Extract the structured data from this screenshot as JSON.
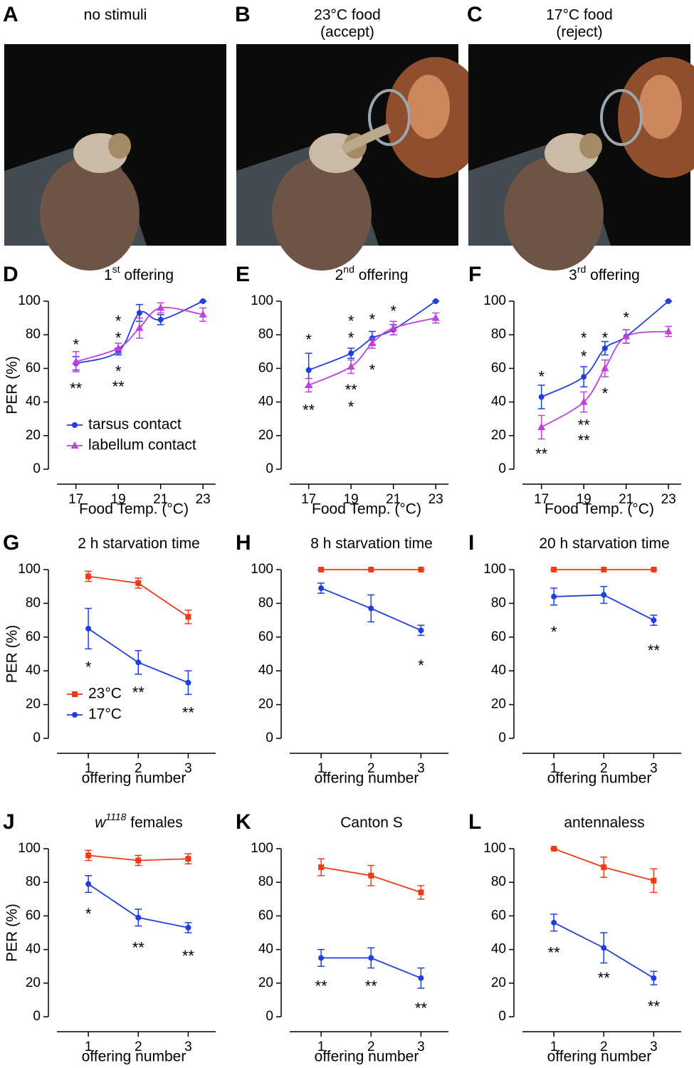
{
  "photos": [
    {
      "letter": "A",
      "title_lines": [
        "no stimuli"
      ]
    },
    {
      "letter": "B",
      "title_lines": [
        "23°C food",
        "(accept)"
      ]
    },
    {
      "letter": "C",
      "title_lines": [
        "17°C food",
        "(reject)"
      ]
    }
  ],
  "chart_data": [
    {
      "type": "line",
      "letter": "D",
      "title_parts": [
        {
          "text": "1"
        },
        {
          "text": "st",
          "sup": true
        },
        {
          "text": " offering"
        }
      ],
      "ylabel": "PER  (%)",
      "xlabel": "Food Temp. (°C)",
      "smooth": true,
      "legend": "lower left",
      "x": [
        17,
        19,
        20,
        21,
        23
      ],
      "xlim": [
        15.7,
        23.6
      ],
      "xticks": [
        17,
        19,
        21,
        23
      ],
      "ylim": [
        0,
        100
      ],
      "yticks": [
        0,
        20,
        40,
        60,
        80,
        100
      ],
      "series": [
        {
          "name": "tarsus contact",
          "color": "#1f3fe0",
          "marker": "circle",
          "values": [
            63,
            70,
            93,
            89,
            100
          ],
          "errors": [
            4,
            2,
            5,
            3,
            0
          ]
        },
        {
          "name": "labellum contact",
          "color": "#c040e0",
          "marker": "triangle",
          "values": [
            64,
            72,
            84,
            96,
            92
          ],
          "errors": [
            6,
            3,
            6,
            3,
            4
          ]
        }
      ],
      "annotations": [
        {
          "text": "*",
          "x": 17,
          "y": 76,
          "color": "#000000"
        },
        {
          "text": "**",
          "x": 17,
          "y": 50,
          "color": "#000000"
        },
        {
          "text": "*",
          "x": 19,
          "y": 90,
          "color": "#e02020"
        },
        {
          "text": "*",
          "x": 19,
          "y": 80,
          "color": "#000000"
        },
        {
          "text": "*",
          "x": 19,
          "y": 60,
          "color": "#000000"
        },
        {
          "text": "**",
          "x": 19,
          "y": 51,
          "color": "#e02020"
        }
      ]
    },
    {
      "type": "line",
      "letter": "E",
      "title_parts": [
        {
          "text": "2"
        },
        {
          "text": "nd",
          "sup": true
        },
        {
          "text": " offering"
        }
      ],
      "xlabel": "Food Temp. (°C)",
      "smooth": true,
      "x": [
        17,
        19,
        20,
        21,
        23
      ],
      "xlim": [
        15.7,
        23.6
      ],
      "xticks": [
        17,
        19,
        21,
        23
      ],
      "ylim": [
        0,
        100
      ],
      "yticks": [
        0,
        20,
        40,
        60,
        80,
        100
      ],
      "series": [
        {
          "name": "tarsus contact",
          "color": "#1f3fe0",
          "marker": "circle",
          "values": [
            59,
            69,
            78,
            83,
            100
          ],
          "errors": [
            10,
            3,
            4,
            3,
            0
          ]
        },
        {
          "name": "labellum contact",
          "color": "#c040e0",
          "marker": "triangle",
          "values": [
            50,
            61,
            75,
            84,
            90
          ],
          "errors": [
            4,
            4,
            3,
            4,
            3
          ]
        }
      ],
      "annotations": [
        {
          "text": "*",
          "x": 17,
          "y": 79,
          "color": "#000000"
        },
        {
          "text": "**",
          "x": 17,
          "y": 37,
          "color": "#000000"
        },
        {
          "text": "*",
          "x": 19,
          "y": 90,
          "color": "#e02020"
        },
        {
          "text": "*",
          "x": 19,
          "y": 80,
          "color": "#000000"
        },
        {
          "text": "**",
          "x": 19,
          "y": 49,
          "color": "#000000"
        },
        {
          "text": "*",
          "x": 19,
          "y": 39,
          "color": "#e02020"
        },
        {
          "text": "*",
          "x": 20,
          "y": 91,
          "color": "#000000"
        },
        {
          "text": "*",
          "x": 20,
          "y": 61,
          "color": "#000000"
        },
        {
          "text": "*",
          "x": 21,
          "y": 96,
          "color": "#000000"
        }
      ]
    },
    {
      "type": "line",
      "letter": "F",
      "title_parts": [
        {
          "text": "3"
        },
        {
          "text": "rd",
          "sup": true
        },
        {
          "text": " offering"
        }
      ],
      "xlabel": "Food Temp. (°C)",
      "smooth": true,
      "x": [
        17,
        19,
        20,
        21,
        23
      ],
      "xlim": [
        15.7,
        23.6
      ],
      "xticks": [
        17,
        19,
        21,
        23
      ],
      "ylim": [
        0,
        100
      ],
      "yticks": [
        0,
        20,
        40,
        60,
        80,
        100
      ],
      "series": [
        {
          "name": "tarsus contact",
          "color": "#1f3fe0",
          "marker": "circle",
          "values": [
            43,
            55,
            72,
            79,
            100
          ],
          "errors": [
            7,
            6,
            4,
            4,
            0
          ]
        },
        {
          "name": "labellum contact",
          "color": "#c040e0",
          "marker": "triangle",
          "values": [
            25,
            40,
            60,
            79,
            82
          ],
          "errors": [
            7,
            6,
            5,
            4,
            3
          ]
        }
      ],
      "annotations": [
        {
          "text": "*",
          "x": 17,
          "y": 57,
          "color": "#000000"
        },
        {
          "text": "**",
          "x": 17,
          "y": 11,
          "color": "#000000"
        },
        {
          "text": "*",
          "x": 19,
          "y": 80,
          "color": "#e02020"
        },
        {
          "text": "*",
          "x": 19,
          "y": 69,
          "color": "#000000"
        },
        {
          "text": "**",
          "x": 19,
          "y": 28,
          "color": "#000000"
        },
        {
          "text": "**",
          "x": 19,
          "y": 19,
          "color": "#e02020"
        },
        {
          "text": "*",
          "x": 20,
          "y": 80,
          "color": "#000000"
        },
        {
          "text": "*",
          "x": 20,
          "y": 47,
          "color": "#000000"
        },
        {
          "text": "*",
          "x": 21,
          "y": 92,
          "color": "#000000"
        }
      ]
    },
    {
      "type": "line",
      "letter": "G",
      "title_parts": [
        {
          "text": "2 h starvation time"
        }
      ],
      "ylabel": "PER  (%)",
      "xlabel": "offering number",
      "legend": "lower left",
      "x": [
        1,
        2,
        3
      ],
      "xlim": [
        0.2,
        3.55
      ],
      "xticks": [
        1,
        2,
        3
      ],
      "ylim": [
        0,
        100
      ],
      "yticks": [
        0,
        20,
        40,
        60,
        80,
        100
      ],
      "series": [
        {
          "name": "23°C",
          "color": "#f03a1a",
          "marker": "square",
          "values": [
            96,
            92,
            72
          ],
          "errors": [
            3,
            3,
            4
          ]
        },
        {
          "name": "17°C",
          "color": "#1f3fe0",
          "marker": "circle",
          "values": [
            65,
            45,
            33
          ],
          "errors": [
            12,
            7,
            7
          ]
        }
      ],
      "annotations": [
        {
          "text": "*",
          "x": 1,
          "y": 44,
          "color": "#000000"
        },
        {
          "text": "**",
          "x": 2,
          "y": 29,
          "color": "#000000"
        },
        {
          "text": "**",
          "x": 3,
          "y": 17,
          "color": "#000000"
        }
      ]
    },
    {
      "type": "line",
      "letter": "H",
      "title_parts": [
        {
          "text": "8 h starvation time"
        }
      ],
      "xlabel": "offering number",
      "x": [
        1,
        2,
        3
      ],
      "xlim": [
        0.2,
        3.55
      ],
      "xticks": [
        1,
        2,
        3
      ],
      "ylim": [
        0,
        100
      ],
      "yticks": [
        0,
        20,
        40,
        60,
        80,
        100
      ],
      "series": [
        {
          "name": "23°C",
          "color": "#f03a1a",
          "marker": "square",
          "values": [
            100,
            100,
            100
          ],
          "errors": [
            0,
            0,
            0
          ]
        },
        {
          "name": "17°C",
          "color": "#1f3fe0",
          "marker": "circle",
          "values": [
            89,
            77,
            64
          ],
          "errors": [
            3,
            8,
            3
          ]
        }
      ],
      "annotations": [
        {
          "text": "*",
          "x": 3,
          "y": 45,
          "color": "#000000"
        }
      ]
    },
    {
      "type": "line",
      "letter": "I",
      "title_parts": [
        {
          "text": "20 h starvation time"
        }
      ],
      "xlabel": "offering number",
      "x": [
        1,
        2,
        3
      ],
      "xlim": [
        0.2,
        3.55
      ],
      "xticks": [
        1,
        2,
        3
      ],
      "ylim": [
        0,
        100
      ],
      "yticks": [
        0,
        20,
        40,
        60,
        80,
        100
      ],
      "series": [
        {
          "name": "23°C",
          "color": "#f03a1a",
          "marker": "square",
          "values": [
            100,
            100,
            100
          ],
          "errors": [
            0,
            0,
            0
          ]
        },
        {
          "name": "17°C",
          "color": "#1f3fe0",
          "marker": "circle",
          "values": [
            84,
            85,
            70
          ],
          "errors": [
            5,
            5,
            3
          ]
        }
      ],
      "annotations": [
        {
          "text": "*",
          "x": 1,
          "y": 65,
          "color": "#000000"
        },
        {
          "text": "**",
          "x": 3,
          "y": 54,
          "color": "#000000"
        }
      ]
    },
    {
      "type": "line",
      "letter": "J",
      "title_parts": [
        {
          "text": "w",
          "italic": true
        },
        {
          "text": "1118",
          "sup": true,
          "italic": true
        },
        {
          "text": " females"
        }
      ],
      "ylabel": "PER  (%)",
      "xlabel": "offering number",
      "x": [
        1,
        2,
        3
      ],
      "xlim": [
        0.2,
        3.55
      ],
      "xticks": [
        1,
        2,
        3
      ],
      "ylim": [
        0,
        100
      ],
      "yticks": [
        0,
        20,
        40,
        60,
        80,
        100
      ],
      "series": [
        {
          "name": "23°C",
          "color": "#f03a1a",
          "marker": "square",
          "values": [
            96,
            93,
            94
          ],
          "errors": [
            3,
            3,
            3
          ]
        },
        {
          "name": "17°C",
          "color": "#1f3fe0",
          "marker": "circle",
          "values": [
            79,
            59,
            53
          ],
          "errors": [
            5,
            5,
            3
          ]
        }
      ],
      "annotations": [
        {
          "text": "*",
          "x": 1,
          "y": 63,
          "color": "#000000"
        },
        {
          "text": "**",
          "x": 2,
          "y": 43,
          "color": "#000000"
        },
        {
          "text": "**",
          "x": 3,
          "y": 38,
          "color": "#000000"
        }
      ]
    },
    {
      "type": "line",
      "letter": "K",
      "title_parts": [
        {
          "text": "Canton S"
        }
      ],
      "xlabel": "offering number",
      "x": [
        1,
        2,
        3
      ],
      "xlim": [
        0.2,
        3.55
      ],
      "xticks": [
        1,
        2,
        3
      ],
      "ylim": [
        0,
        100
      ],
      "yticks": [
        0,
        20,
        40,
        60,
        80,
        100
      ],
      "series": [
        {
          "name": "23°C",
          "color": "#f03a1a",
          "marker": "square",
          "values": [
            89,
            84,
            74
          ],
          "errors": [
            5,
            6,
            4
          ]
        },
        {
          "name": "17°C",
          "color": "#1f3fe0",
          "marker": "circle",
          "values": [
            35,
            35,
            23
          ],
          "errors": [
            5,
            6,
            6
          ]
        }
      ],
      "annotations": [
        {
          "text": "**",
          "x": 1,
          "y": 20,
          "color": "#000000"
        },
        {
          "text": "**",
          "x": 2,
          "y": 20,
          "color": "#000000"
        },
        {
          "text": "**",
          "x": 3,
          "y": 7,
          "color": "#000000"
        }
      ]
    },
    {
      "type": "line",
      "letter": "L",
      "title_parts": [
        {
          "text": "antennaless"
        }
      ],
      "xlabel": "offering number",
      "x": [
        1,
        2,
        3
      ],
      "xlim": [
        0.2,
        3.55
      ],
      "xticks": [
        1,
        2,
        3
      ],
      "ylim": [
        0,
        100
      ],
      "yticks": [
        0,
        20,
        40,
        60,
        80,
        100
      ],
      "series": [
        {
          "name": "23°C",
          "color": "#f03a1a",
          "marker": "square",
          "values": [
            100,
            89,
            81
          ],
          "errors": [
            0,
            6,
            7
          ]
        },
        {
          "name": "17°C",
          "color": "#1f3fe0",
          "marker": "circle",
          "values": [
            56,
            41,
            23
          ],
          "errors": [
            5,
            9,
            4
          ]
        }
      ],
      "annotations": [
        {
          "text": "**",
          "x": 1,
          "y": 40,
          "color": "#000000"
        },
        {
          "text": "**",
          "x": 2,
          "y": 25,
          "color": "#000000"
        },
        {
          "text": "**",
          "x": 3,
          "y": 8,
          "color": "#000000"
        }
      ]
    }
  ]
}
